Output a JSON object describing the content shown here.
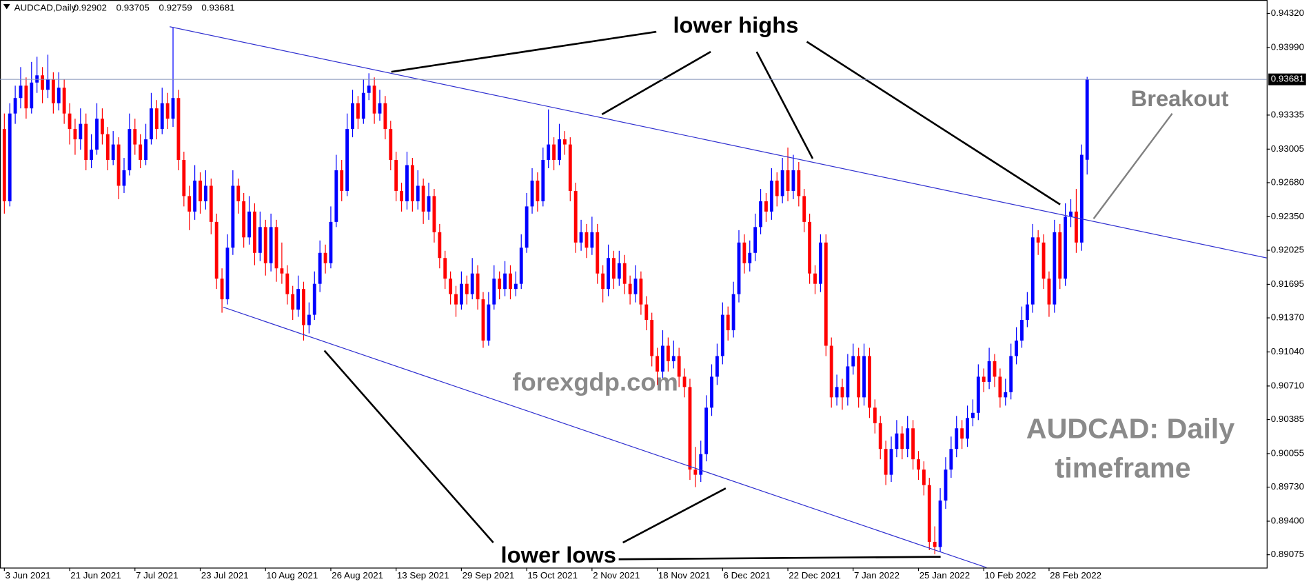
{
  "chart_data": {
    "type": "candlestick",
    "title": "AUDCAD,Daily",
    "up_color": "#0000ff",
    "down_color": "#ff0000",
    "xlim": [
      -0.8,
      232
    ],
    "ylim": [
      0.8895,
      0.9445
    ],
    "yticks": [
      {
        "value": 0.9432,
        "label": "0.94320"
      },
      {
        "value": 0.9399,
        "label": "0.93990"
      },
      0.93335,
      {
        "value": 0.93005,
        "label": "0.93005"
      },
      {
        "value": 0.9268,
        "label": "0.92680"
      },
      {
        "value": 0.9235,
        "label": "0.92350"
      },
      0.92025,
      0.91695,
      {
        "value": 0.9137,
        "label": "0.91370"
      },
      {
        "value": 0.9104,
        "label": "0.91040"
      },
      {
        "value": 0.9071,
        "label": "0.90710"
      },
      0.90385,
      0.90055,
      {
        "value": 0.8973,
        "label": "0.89730"
      },
      {
        "value": 0.894,
        "label": "0.89400"
      },
      0.89075
    ],
    "xticks": [
      {
        "value": 0,
        "label": "3 Jun 2021"
      },
      {
        "value": 12,
        "label": "21 Jun 2021"
      },
      {
        "value": 24,
        "label": "7 Jul 2021"
      },
      {
        "value": 36,
        "label": "23 Jul 2021"
      },
      {
        "value": 48,
        "label": "10 Aug 2021"
      },
      {
        "value": 60,
        "label": "26 Aug 2021"
      },
      {
        "value": 72,
        "label": "13 Sep 2021"
      },
      {
        "value": 84,
        "label": "29 Sep 2021"
      },
      {
        "value": 96,
        "label": "15 Oct 2021"
      },
      {
        "value": 108,
        "label": "2 Nov 2021"
      },
      {
        "value": 120,
        "label": "18 Nov 2021"
      },
      {
        "value": 132,
        "label": "6 Dec 2021"
      },
      {
        "value": 144,
        "label": "22 Dec 2021"
      },
      {
        "value": 156,
        "label": "7 Jan 2022"
      },
      {
        "value": 168,
        "label": "25 Jan 2022"
      },
      {
        "value": 180,
        "label": "10 Feb 2022"
      },
      {
        "value": 192,
        "label": "28 Feb 2022"
      }
    ],
    "annotations": [
      "lower highs",
      "lower lows",
      "Breakout",
      "forexgdp.com",
      "AUDCAD: Daily",
      "timeframe"
    ],
    "ohlc": [
      [
        0.932,
        0.9335,
        0.9238,
        0.925
      ],
      [
        0.925,
        0.9345,
        0.9245,
        0.9335
      ],
      [
        0.9335,
        0.9362,
        0.9325,
        0.935
      ],
      [
        0.935,
        0.938,
        0.934,
        0.9362
      ],
      [
        0.9362,
        0.937,
        0.933,
        0.934
      ],
      [
        0.934,
        0.9385,
        0.9335,
        0.9365
      ],
      [
        0.9365,
        0.939,
        0.9355,
        0.9372
      ],
      [
        0.9372,
        0.938,
        0.9345,
        0.9358
      ],
      [
        0.9358,
        0.9392,
        0.935,
        0.9368
      ],
      [
        0.9368,
        0.9375,
        0.9335,
        0.9345
      ],
      [
        0.9345,
        0.9375,
        0.9338,
        0.936
      ],
      [
        0.936,
        0.9368,
        0.9325,
        0.9335
      ],
      [
        0.9335,
        0.9345,
        0.9305,
        0.932
      ],
      [
        0.932,
        0.933,
        0.9295,
        0.931
      ],
      [
        0.931,
        0.934,
        0.93,
        0.9325
      ],
      [
        0.9325,
        0.9335,
        0.928,
        0.929
      ],
      [
        0.929,
        0.9315,
        0.9282,
        0.93
      ],
      [
        0.93,
        0.9345,
        0.9295,
        0.933
      ],
      [
        0.933,
        0.934,
        0.9305,
        0.9315
      ],
      [
        0.9315,
        0.9322,
        0.928,
        0.929
      ],
      [
        0.929,
        0.9318,
        0.9285,
        0.9305
      ],
      [
        0.9305,
        0.9312,
        0.9252,
        0.9265
      ],
      [
        0.9265,
        0.9292,
        0.9258,
        0.928
      ],
      [
        0.928,
        0.9335,
        0.9275,
        0.932
      ],
      [
        0.932,
        0.933,
        0.9295,
        0.9305
      ],
      [
        0.9305,
        0.9315,
        0.9282,
        0.929
      ],
      [
        0.929,
        0.9325,
        0.9285,
        0.931
      ],
      [
        0.931,
        0.9355,
        0.9305,
        0.934
      ],
      [
        0.934,
        0.9348,
        0.931,
        0.932
      ],
      [
        0.932,
        0.936,
        0.9315,
        0.9345
      ],
      [
        0.9345,
        0.9355,
        0.932,
        0.933
      ],
      [
        0.933,
        0.9418,
        0.9322,
        0.935
      ],
      [
        0.935,
        0.9358,
        0.928,
        0.929
      ],
      [
        0.929,
        0.9298,
        0.9245,
        0.9255
      ],
      [
        0.9255,
        0.9265,
        0.9222,
        0.924
      ],
      [
        0.924,
        0.9285,
        0.9232,
        0.927
      ],
      [
        0.927,
        0.9278,
        0.9238,
        0.925
      ],
      [
        0.925,
        0.928,
        0.9242,
        0.9265
      ],
      [
        0.9265,
        0.9272,
        0.9218,
        0.923
      ],
      [
        0.923,
        0.9238,
        0.9165,
        0.9175
      ],
      [
        0.9175,
        0.9185,
        0.9142,
        0.9155
      ],
      [
        0.9155,
        0.9218,
        0.915,
        0.9205
      ],
      [
        0.9205,
        0.928,
        0.9198,
        0.9265
      ],
      [
        0.9265,
        0.9272,
        0.9238,
        0.925
      ],
      [
        0.925,
        0.9258,
        0.9205,
        0.9215
      ],
      [
        0.9215,
        0.9255,
        0.9208,
        0.924
      ],
      [
        0.924,
        0.9248,
        0.9188,
        0.92
      ],
      [
        0.92,
        0.924,
        0.9192,
        0.9225
      ],
      [
        0.9225,
        0.9232,
        0.9178,
        0.919
      ],
      [
        0.919,
        0.9238,
        0.9182,
        0.9225
      ],
      [
        0.9225,
        0.9232,
        0.9172,
        0.9185
      ],
      [
        0.9185,
        0.921,
        0.917,
        0.918
      ],
      [
        0.918,
        0.9188,
        0.915,
        0.916
      ],
      [
        0.916,
        0.9168,
        0.9135,
        0.9145
      ],
      [
        0.9145,
        0.9178,
        0.9138,
        0.9165
      ],
      [
        0.9165,
        0.9172,
        0.9115,
        0.913
      ],
      [
        0.913,
        0.9152,
        0.9122,
        0.914
      ],
      [
        0.914,
        0.9182,
        0.9135,
        0.917
      ],
      [
        0.917,
        0.9212,
        0.9162,
        0.92
      ],
      [
        0.92,
        0.9208,
        0.918,
        0.919
      ],
      [
        0.919,
        0.9245,
        0.9185,
        0.923
      ],
      [
        0.923,
        0.9295,
        0.9225,
        0.928
      ],
      [
        0.928,
        0.929,
        0.925,
        0.926
      ],
      [
        0.926,
        0.9335,
        0.9255,
        0.932
      ],
      [
        0.932,
        0.9358,
        0.9312,
        0.9345
      ],
      [
        0.9345,
        0.9352,
        0.932,
        0.933
      ],
      [
        0.933,
        0.9368,
        0.9325,
        0.9355
      ],
      [
        0.9355,
        0.9374,
        0.9348,
        0.9362
      ],
      [
        0.9362,
        0.937,
        0.9325,
        0.9335
      ],
      [
        0.9335,
        0.9358,
        0.9328,
        0.9345
      ],
      [
        0.9345,
        0.9352,
        0.931,
        0.932
      ],
      [
        0.932,
        0.9328,
        0.928,
        0.929
      ],
      [
        0.929,
        0.9298,
        0.925,
        0.926
      ],
      [
        0.926,
        0.9268,
        0.924,
        0.925
      ],
      [
        0.925,
        0.9298,
        0.9242,
        0.9285
      ],
      [
        0.9285,
        0.9292,
        0.924,
        0.925
      ],
      [
        0.925,
        0.928,
        0.9242,
        0.9265
      ],
      [
        0.9265,
        0.9272,
        0.9228,
        0.924
      ],
      [
        0.924,
        0.9268,
        0.9232,
        0.9255
      ],
      [
        0.9255,
        0.9262,
        0.921,
        0.922
      ],
      [
        0.922,
        0.9228,
        0.9185,
        0.9195
      ],
      [
        0.9195,
        0.9202,
        0.9165,
        0.9175
      ],
      [
        0.9175,
        0.9182,
        0.915,
        0.916
      ],
      [
        0.916,
        0.9168,
        0.9138,
        0.915
      ],
      [
        0.915,
        0.9182,
        0.9145,
        0.917
      ],
      [
        0.917,
        0.9178,
        0.915,
        0.916
      ],
      [
        0.916,
        0.9195,
        0.9155,
        0.918
      ],
      [
        0.918,
        0.9188,
        0.9145,
        0.9155
      ],
      [
        0.9155,
        0.9162,
        0.9108,
        0.9115
      ],
      [
        0.9115,
        0.9162,
        0.911,
        0.915
      ],
      [
        0.915,
        0.9188,
        0.9145,
        0.9175
      ],
      [
        0.9175,
        0.9182,
        0.9155,
        0.9165
      ],
      [
        0.9165,
        0.9192,
        0.9158,
        0.918
      ],
      [
        0.918,
        0.9188,
        0.9155,
        0.9165
      ],
      [
        0.9165,
        0.9182,
        0.9158,
        0.917
      ],
      [
        0.917,
        0.9218,
        0.9165,
        0.9205
      ],
      [
        0.9205,
        0.9258,
        0.92,
        0.9245
      ],
      [
        0.9245,
        0.9282,
        0.9238,
        0.927
      ],
      [
        0.927,
        0.9278,
        0.924,
        0.925
      ],
      [
        0.925,
        0.9302,
        0.9245,
        0.929
      ],
      [
        0.929,
        0.9339,
        0.9282,
        0.9305
      ],
      [
        0.9305,
        0.9312,
        0.928,
        0.929
      ],
      [
        0.929,
        0.9325,
        0.9285,
        0.931
      ],
      [
        0.931,
        0.9318,
        0.9295,
        0.9305
      ],
      [
        0.9305,
        0.9312,
        0.925,
        0.926
      ],
      [
        0.926,
        0.9268,
        0.92,
        0.921
      ],
      [
        0.921,
        0.9232,
        0.9202,
        0.922
      ],
      [
        0.922,
        0.9228,
        0.9195,
        0.9205
      ],
      [
        0.9205,
        0.9235,
        0.9198,
        0.922
      ],
      [
        0.922,
        0.9228,
        0.917,
        0.918
      ],
      [
        0.918,
        0.9188,
        0.9152,
        0.9165
      ],
      [
        0.9165,
        0.9208,
        0.9158,
        0.9195
      ],
      [
        0.9195,
        0.9202,
        0.9165,
        0.9175
      ],
      [
        0.9175,
        0.9202,
        0.9168,
        0.919
      ],
      [
        0.919,
        0.9198,
        0.916,
        0.917
      ],
      [
        0.917,
        0.9178,
        0.915,
        0.916
      ],
      [
        0.916,
        0.9188,
        0.9152,
        0.9175
      ],
      [
        0.9175,
        0.9182,
        0.914,
        0.915
      ],
      [
        0.915,
        0.9158,
        0.9125,
        0.9135
      ],
      [
        0.9135,
        0.9142,
        0.909,
        0.91
      ],
      [
        0.91,
        0.9108,
        0.9072,
        0.9085
      ],
      [
        0.9085,
        0.9125,
        0.9078,
        0.911
      ],
      [
        0.911,
        0.9118,
        0.9085,
        0.9095
      ],
      [
        0.9095,
        0.9115,
        0.9088,
        0.91
      ],
      [
        0.91,
        0.9108,
        0.907,
        0.908
      ],
      [
        0.908,
        0.9088,
        0.906,
        0.907
      ],
      [
        0.907,
        0.9078,
        0.898,
        0.899
      ],
      [
        0.899,
        0.9012,
        0.8973,
        0.8985
      ],
      [
        0.8985,
        0.9018,
        0.8978,
        0.9005
      ],
      [
        0.9005,
        0.9062,
        0.8998,
        0.905
      ],
      [
        0.905,
        0.9092,
        0.9042,
        0.908
      ],
      [
        0.908,
        0.9112,
        0.9072,
        0.91
      ],
      [
        0.91,
        0.9152,
        0.9092,
        0.914
      ],
      [
        0.914,
        0.9148,
        0.9115,
        0.9125
      ],
      [
        0.9125,
        0.9172,
        0.9118,
        0.916
      ],
      [
        0.916,
        0.9222,
        0.9152,
        0.921
      ],
      [
        0.921,
        0.9218,
        0.918,
        0.919
      ],
      [
        0.919,
        0.9212,
        0.9182,
        0.92
      ],
      [
        0.92,
        0.9238,
        0.9192,
        0.9225
      ],
      [
        0.9225,
        0.9262,
        0.9218,
        0.925
      ],
      [
        0.925,
        0.9258,
        0.923,
        0.924
      ],
      [
        0.924,
        0.9282,
        0.9232,
        0.927
      ],
      [
        0.927,
        0.9278,
        0.9245,
        0.9255
      ],
      [
        0.9255,
        0.9292,
        0.9248,
        0.928
      ],
      [
        0.928,
        0.9302,
        0.925,
        0.926
      ],
      [
        0.926,
        0.9295,
        0.9252,
        0.928
      ],
      [
        0.928,
        0.9288,
        0.9245,
        0.9255
      ],
      [
        0.9255,
        0.9262,
        0.922,
        0.923
      ],
      [
        0.923,
        0.9238,
        0.917,
        0.918
      ],
      [
        0.918,
        0.9188,
        0.916,
        0.917
      ],
      [
        0.917,
        0.9218,
        0.9162,
        0.921
      ],
      [
        0.921,
        0.9218,
        0.91,
        0.911
      ],
      [
        0.911,
        0.9118,
        0.905,
        0.906
      ],
      [
        0.906,
        0.9082,
        0.9052,
        0.907
      ],
      [
        0.907,
        0.9078,
        0.9048,
        0.906
      ],
      [
        0.906,
        0.9102,
        0.9052,
        0.909
      ],
      [
        0.909,
        0.9112,
        0.9082,
        0.91
      ],
      [
        0.91,
        0.9108,
        0.905,
        0.906
      ],
      [
        0.906,
        0.9112,
        0.9052,
        0.91
      ],
      [
        0.91,
        0.9108,
        0.904,
        0.905
      ],
      [
        0.905,
        0.9058,
        0.9025,
        0.9035
      ],
      [
        0.9035,
        0.9042,
        0.9,
        0.901
      ],
      [
        0.901,
        0.9018,
        0.8975,
        0.8985
      ],
      [
        0.8985,
        0.9022,
        0.8978,
        0.901
      ],
      [
        0.901,
        0.9038,
        0.9002,
        0.9025
      ],
      [
        0.9025,
        0.9032,
        0.9,
        0.901
      ],
      [
        0.901,
        0.9042,
        0.9002,
        0.903
      ],
      [
        0.903,
        0.9038,
        0.899,
        0.9
      ],
      [
        0.9,
        0.9008,
        0.898,
        0.899
      ],
      [
        0.899,
        0.8998,
        0.8965,
        0.8975
      ],
      [
        0.8975,
        0.8982,
        0.8912,
        0.892
      ],
      [
        0.892,
        0.8935,
        0.8908,
        0.8915
      ],
      [
        0.8915,
        0.8972,
        0.891,
        0.896
      ],
      [
        0.896,
        0.9002,
        0.8952,
        0.899
      ],
      [
        0.899,
        0.9022,
        0.8982,
        0.901
      ],
      [
        0.901,
        0.9042,
        0.9002,
        0.903
      ],
      [
        0.903,
        0.9038,
        0.901,
        0.902
      ],
      [
        0.902,
        0.9052,
        0.9012,
        0.904
      ],
      [
        0.904,
        0.9058,
        0.9032,
        0.9045
      ],
      [
        0.9045,
        0.9092,
        0.9038,
        0.908
      ],
      [
        0.908,
        0.9088,
        0.9065,
        0.9075
      ],
      [
        0.9075,
        0.9108,
        0.9068,
        0.9095
      ],
      [
        0.9095,
        0.9102,
        0.907,
        0.908
      ],
      [
        0.908,
        0.9088,
        0.905,
        0.906
      ],
      [
        0.906,
        0.9078,
        0.9052,
        0.9065
      ],
      [
        0.9065,
        0.9112,
        0.9058,
        0.91
      ],
      [
        0.91,
        0.9128,
        0.9092,
        0.9115
      ],
      [
        0.9115,
        0.9148,
        0.9108,
        0.9135
      ],
      [
        0.9135,
        0.9162,
        0.9128,
        0.915
      ],
      [
        0.915,
        0.9228,
        0.9142,
        0.9215
      ],
      [
        0.9215,
        0.9222,
        0.9198,
        0.921
      ],
      [
        0.921,
        0.9218,
        0.9165,
        0.9175
      ],
      [
        0.9175,
        0.9182,
        0.9138,
        0.915
      ],
      [
        0.915,
        0.9232,
        0.9142,
        0.922
      ],
      [
        0.922,
        0.9228,
        0.9165,
        0.9175
      ],
      [
        0.9175,
        0.9248,
        0.9168,
        0.9235
      ],
      [
        0.9235,
        0.9252,
        0.9225,
        0.924
      ],
      [
        0.924,
        0.9262,
        0.92,
        0.921
      ],
      [
        0.921,
        0.9305,
        0.9202,
        0.9295
      ],
      [
        0.92902,
        0.93705,
        0.92759,
        0.93681
      ]
    ]
  }
}
